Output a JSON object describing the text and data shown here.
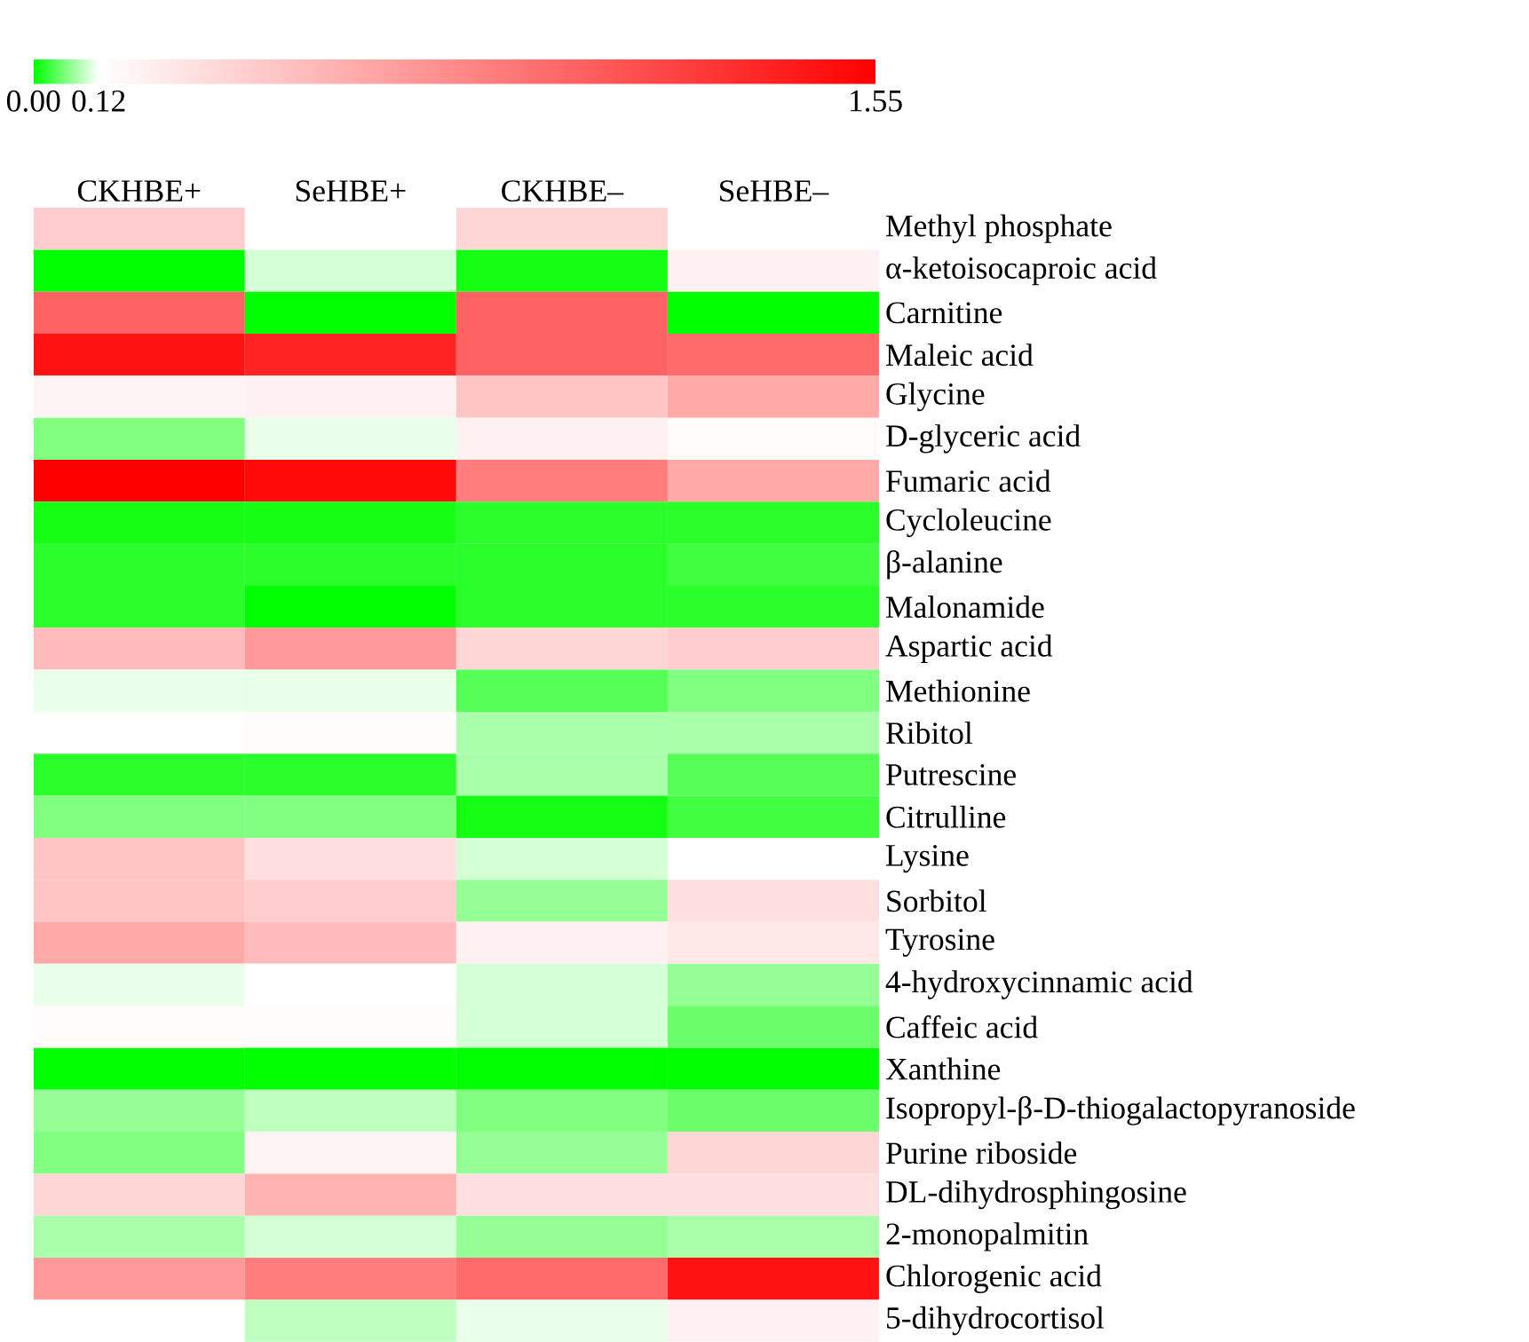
{
  "chart_data": {
    "type": "heatmap",
    "categories": [
      "CKHBE+",
      "SeHBE+",
      "CKHBE–",
      "SeHBE–"
    ],
    "y_categories": [
      "Methyl phosphate",
      "α-ketoisocaproic acid",
      "Carnitine",
      "Maleic acid",
      "Glycine",
      "D-glyceric acid",
      "Fumaric acid",
      "Cycloleucine",
      "β-alanine",
      "Malonamide",
      "Aspartic acid",
      "Methionine",
      "Ribitol",
      "Putrescine",
      "Citrulline",
      "Lysine",
      "Sorbitol",
      "Tyrosine",
      "4-hydroxycinnamic acid",
      "Caffeic acid",
      "Xanthine",
      "Isopropyl-β-D-thiogalactopyranoside",
      "Purine riboside",
      "DL-dihydrosphingosine",
      "2-monopalmitin",
      "Chlorogenic acid",
      "5-dihydrocortisol"
    ],
    "cells": [
      [
        0.4,
        0.12,
        0.35,
        0.12
      ],
      [
        0.0,
        0.1,
        0.01,
        0.2
      ],
      [
        1.0,
        0.0,
        1.0,
        0.0
      ],
      [
        1.45,
        1.35,
        1.0,
        0.95
      ],
      [
        0.18,
        0.2,
        0.45,
        0.6
      ],
      [
        0.06,
        0.11,
        0.2,
        0.14
      ],
      [
        1.55,
        1.5,
        0.85,
        0.6
      ],
      [
        0.01,
        0.01,
        0.02,
        0.02
      ],
      [
        0.02,
        0.02,
        0.02,
        0.03
      ],
      [
        0.02,
        0.0,
        0.02,
        0.02
      ],
      [
        0.5,
        0.7,
        0.35,
        0.4
      ],
      [
        0.11,
        0.11,
        0.04,
        0.06
      ],
      [
        0.12,
        0.14,
        0.08,
        0.08
      ],
      [
        0.02,
        0.02,
        0.08,
        0.04
      ],
      [
        0.06,
        0.06,
        0.01,
        0.03
      ],
      [
        0.45,
        0.3,
        0.1,
        0.12
      ],
      [
        0.45,
        0.4,
        0.07,
        0.3
      ],
      [
        0.6,
        0.5,
        0.2,
        0.25
      ],
      [
        0.11,
        0.12,
        0.1,
        0.07
      ],
      [
        0.14,
        0.14,
        0.1,
        0.05
      ],
      [
        0.0,
        0.0,
        0.0,
        0.0
      ],
      [
        0.07,
        0.09,
        0.06,
        0.05
      ],
      [
        0.06,
        0.18,
        0.07,
        0.35
      ],
      [
        0.35,
        0.55,
        0.3,
        0.3
      ],
      [
        0.08,
        0.1,
        0.07,
        0.08
      ],
      [
        0.7,
        0.85,
        0.95,
        1.45
      ],
      [
        0.12,
        0.09,
        0.11,
        0.2
      ]
    ],
    "clim": [
      0,
      1.55
    ],
    "cticks": [
      {
        "value": 0,
        "label": "0.00"
      },
      0.12,
      1.55
    ]
  }
}
